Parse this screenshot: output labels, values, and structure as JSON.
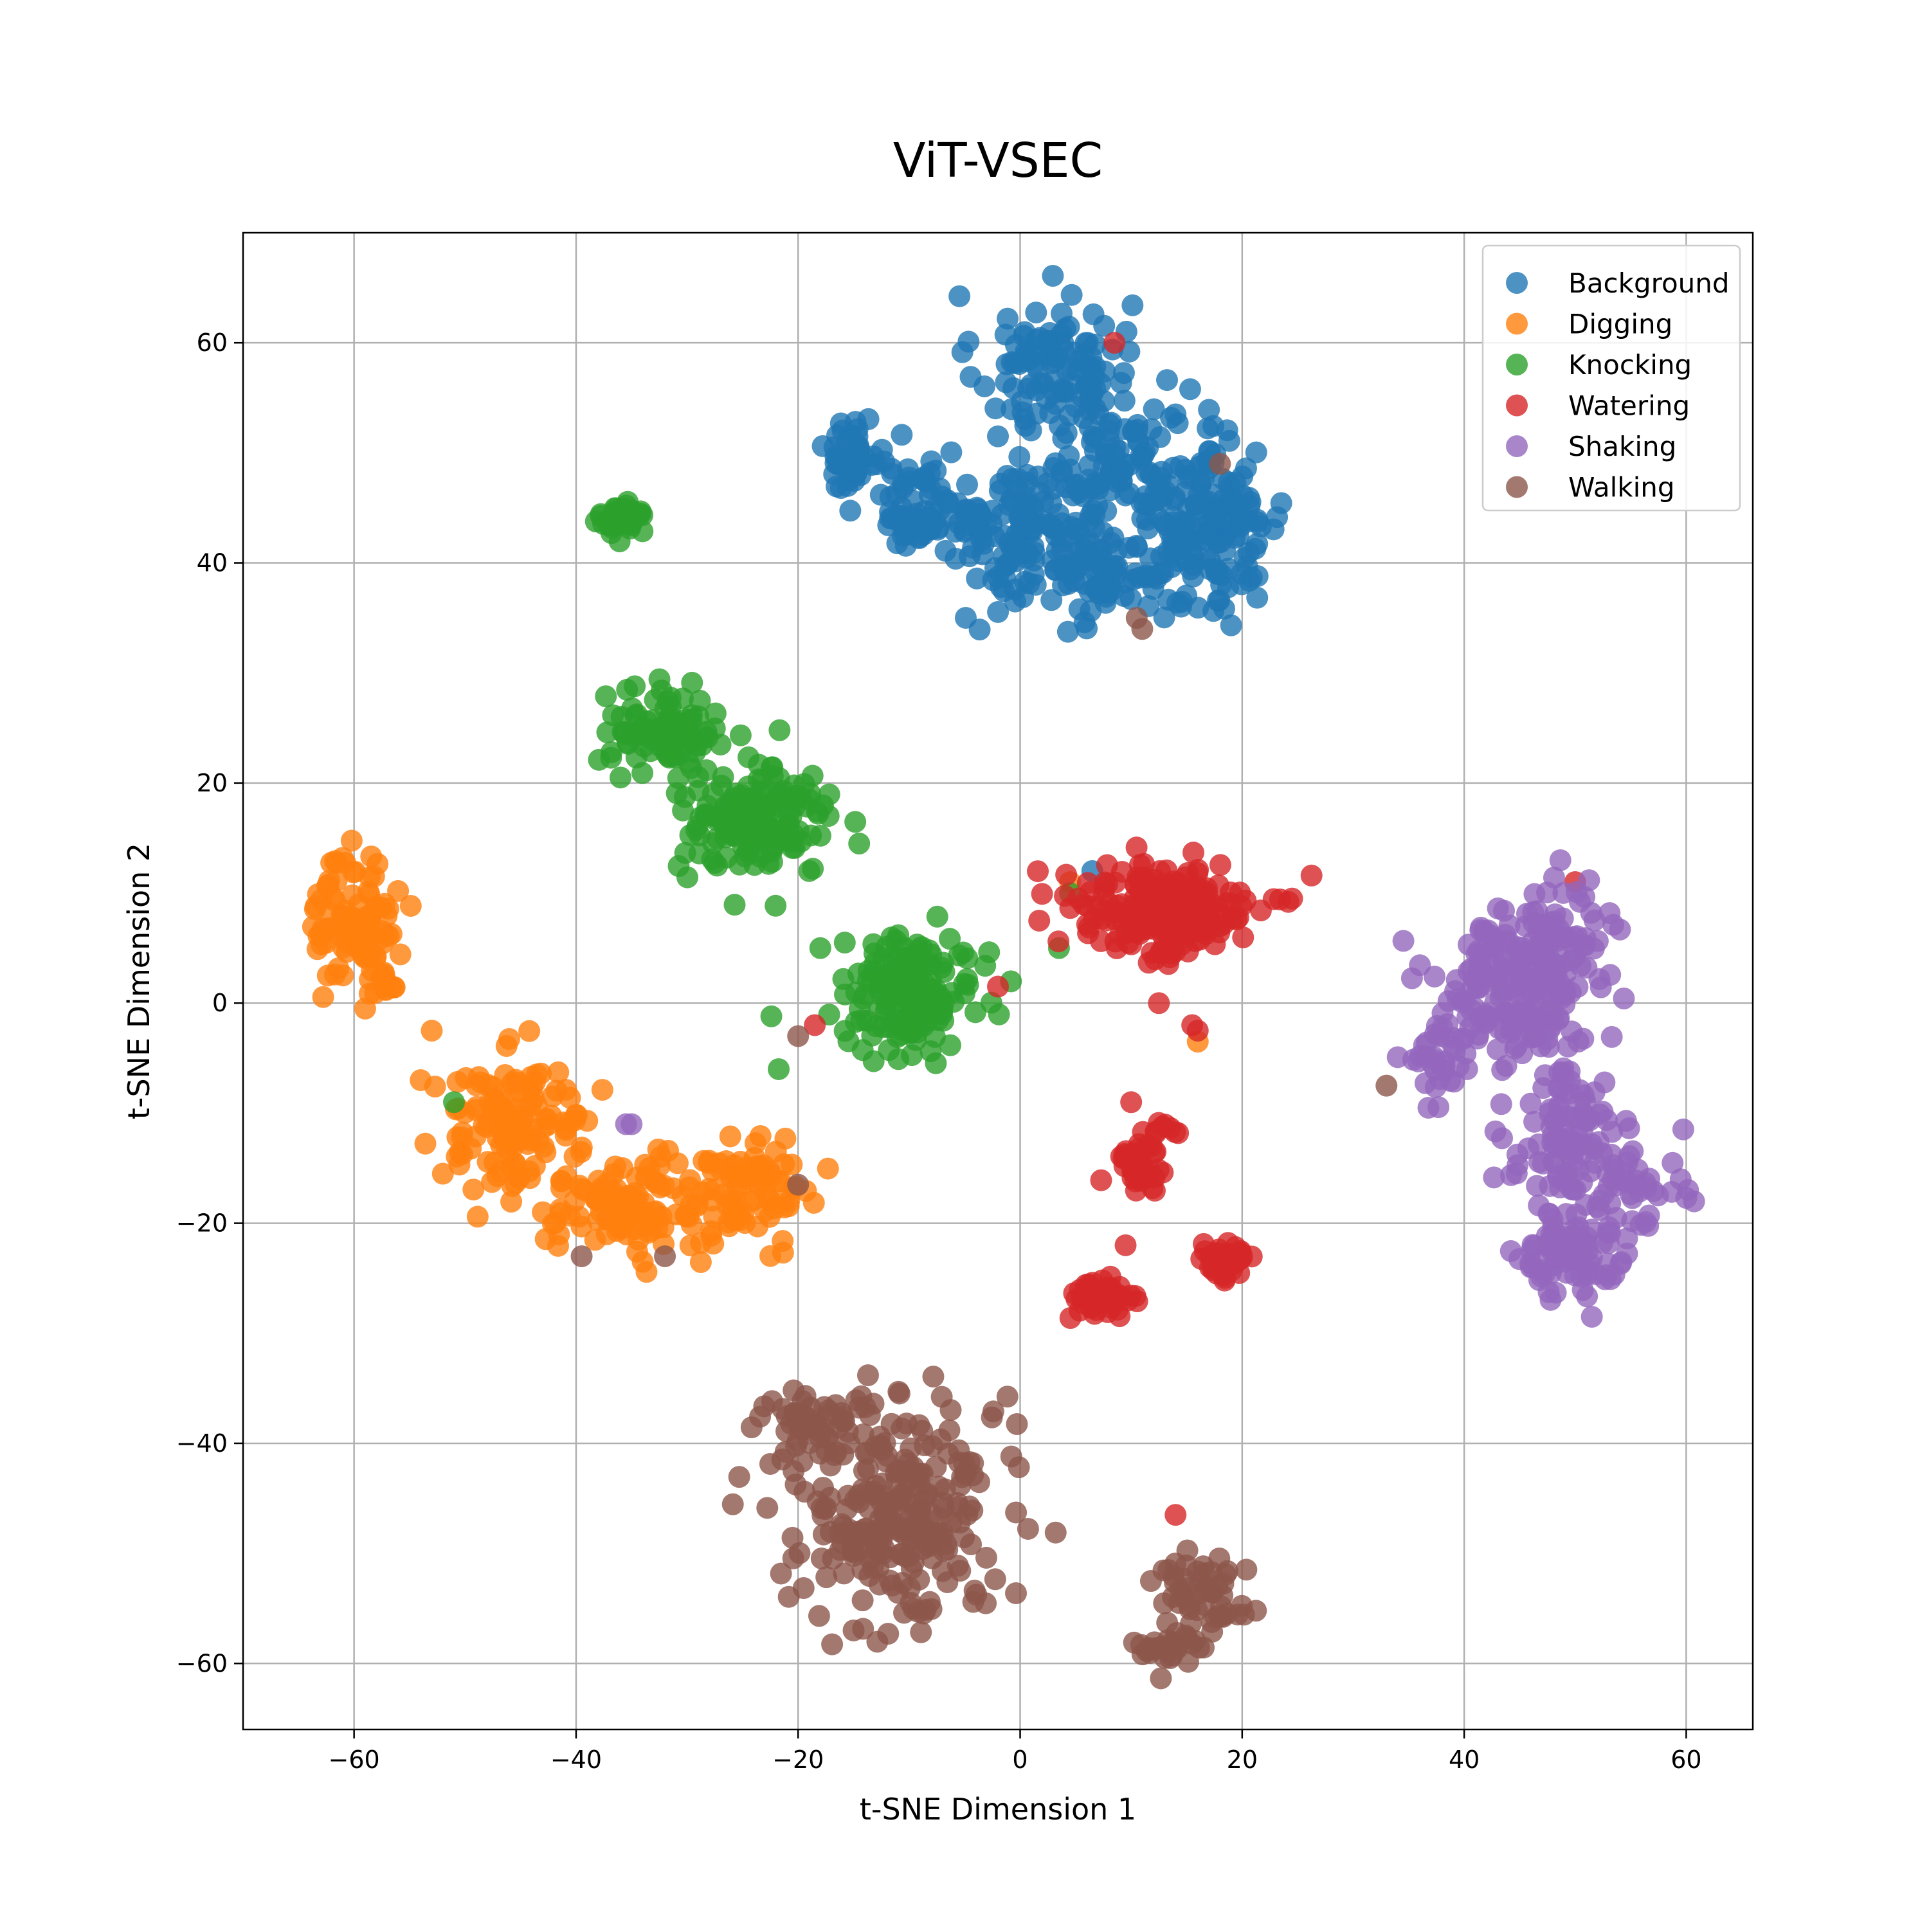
{
  "chart_data": {
    "type": "scatter",
    "title": "ViT-VSEC",
    "xlabel": "t-SNE Dimension 1",
    "ylabel": "t-SNE Dimension 2",
    "xlim": [
      -70,
      66
    ],
    "ylim": [
      -66,
      70
    ],
    "xticks": [
      -60,
      -40,
      -20,
      0,
      20,
      40,
      60
    ],
    "yticks": [
      -60,
      -40,
      -20,
      0,
      20,
      40,
      60
    ],
    "xtick_labels": [
      "−60",
      "−40",
      "−20",
      "0",
      "20",
      "40",
      "60"
    ],
    "ytick_labels": [
      "−60",
      "−40",
      "−20",
      "0",
      "20",
      "40",
      "60"
    ],
    "grid": true,
    "legend_position": "top-right",
    "marker_alpha": 0.8,
    "series": [
      {
        "name": "Background",
        "color": "#1f77b4",
        "clusters": [
          {
            "cx": 3,
            "cy": 58,
            "sx": 3.5,
            "sy": 3.2,
            "n": 110
          },
          {
            "cx": 1,
            "cy": 43,
            "sx": 4.0,
            "sy": 3.5,
            "n": 150
          },
          {
            "cx": 8,
            "cy": 39,
            "sx": 3.0,
            "sy": 2.5,
            "n": 60
          },
          {
            "cx": 17,
            "cy": 44,
            "sx": 3.5,
            "sy": 4.5,
            "n": 170
          },
          {
            "cx": 9,
            "cy": 48,
            "sx": 3.5,
            "sy": 3.0,
            "n": 70
          },
          {
            "cx": -15,
            "cy": 50,
            "sx": 1.5,
            "sy": 1.6,
            "n": 45
          },
          {
            "cx": -9,
            "cy": 46,
            "sx": 2.0,
            "sy": 1.6,
            "n": 40
          },
          {
            "cx": -10,
            "cy": 43,
            "sx": 1.2,
            "sy": 0.9,
            "n": 20
          }
        ],
        "points": [
          [
            6.5,
            12
          ],
          [
            -2,
            51.5
          ],
          [
            14,
            53.5
          ]
        ]
      },
      {
        "name": "Digging",
        "color": "#ff7f0e",
        "clusters": [
          {
            "cx": -60,
            "cy": 8,
            "sx": 1.8,
            "sy": 3.0,
            "n": 90
          },
          {
            "cx": -57.5,
            "cy": 3,
            "sx": 1.0,
            "sy": 1.6,
            "n": 20
          },
          {
            "cx": -45.5,
            "cy": -11,
            "sx": 3.5,
            "sy": 3.0,
            "n": 130
          },
          {
            "cx": -35,
            "cy": -18.5,
            "sx": 3.5,
            "sy": 2.2,
            "n": 110
          },
          {
            "cx": -24,
            "cy": -17,
            "sx": 2.6,
            "sy": 2.2,
            "n": 80
          }
        ],
        "points": [
          [
            -53,
            -2.5
          ],
          [
            -54,
            -7
          ],
          [
            -59,
            -0.5
          ],
          [
            -52,
            -15.5
          ],
          [
            -43,
            -19
          ],
          [
            -22,
            -13.5
          ],
          [
            16,
            -3.5
          ],
          [
            4.5,
            11
          ],
          [
            -34,
            -23.5
          ]
        ]
      },
      {
        "name": "Knocking",
        "color": "#2ca02c",
        "clusters": [
          {
            "cx": -36,
            "cy": 44,
            "sx": 1.0,
            "sy": 0.9,
            "n": 45
          },
          {
            "cx": -32,
            "cy": 25,
            "sx": 2.4,
            "sy": 1.7,
            "n": 90
          },
          {
            "cx": -24,
            "cy": 16.5,
            "sx": 3.5,
            "sy": 2.5,
            "n": 160
          },
          {
            "cx": -10,
            "cy": 1,
            "sx": 3.0,
            "sy": 2.5,
            "n": 160
          }
        ],
        "points": [
          [
            -14.5,
            14.5
          ],
          [
            3.5,
            5
          ],
          [
            -51,
            -9
          ],
          [
            -18,
            5
          ],
          [
            -36,
            20.5
          ],
          [
            4.5,
            10
          ]
        ]
      },
      {
        "name": "Watering",
        "color": "#d62728",
        "clusters": [
          {
            "cx": 13,
            "cy": 8.5,
            "sx": 4.2,
            "sy": 2.2,
            "n": 220
          },
          {
            "cx": 10.5,
            "cy": -14.5,
            "sx": 1.0,
            "sy": 1.6,
            "n": 40
          },
          {
            "cx": 13,
            "cy": -11.5,
            "sx": 1.0,
            "sy": 0.3,
            "n": 8
          },
          {
            "cx": 7.5,
            "cy": -27,
            "sx": 1.5,
            "sy": 1.0,
            "n": 45
          },
          {
            "cx": 18.5,
            "cy": -23.5,
            "sx": 1.5,
            "sy": 1.0,
            "n": 40
          }
        ],
        "points": [
          [
            8.5,
            60
          ],
          [
            -2,
            1.5
          ],
          [
            -18.5,
            -2
          ],
          [
            15.5,
            -2
          ],
          [
            12.5,
            0
          ],
          [
            14,
            -46.5
          ],
          [
            50,
            11
          ],
          [
            24.5,
            9.5
          ],
          [
            10,
            -9
          ],
          [
            9.5,
            -22
          ],
          [
            16,
            -2.5
          ]
        ]
      },
      {
        "name": "Shaking",
        "color": "#9467bd",
        "clusters": [
          {
            "cx": 44,
            "cy": 1,
            "sx": 3.5,
            "sy": 3.5,
            "n": 180
          },
          {
            "cx": 49,
            "cy": 6,
            "sx": 2.5,
            "sy": 2.5,
            "n": 60
          },
          {
            "cx": 49,
            "cy": -12,
            "sx": 2.5,
            "sy": 3.0,
            "n": 90
          },
          {
            "cx": 50,
            "cy": -23,
            "sx": 2.5,
            "sy": 1.8,
            "n": 80
          },
          {
            "cx": 55,
            "cy": -17,
            "sx": 2.5,
            "sy": 2.0,
            "n": 50
          },
          {
            "cx": 37,
            "cy": -6,
            "sx": 1.5,
            "sy": 2.0,
            "n": 25
          }
        ],
        "points": [
          [
            -35,
            -11
          ],
          [
            -35.5,
            -11
          ],
          [
            51.5,
            -28.5
          ],
          [
            59.5,
            -16
          ],
          [
            46,
            -24
          ]
        ]
      },
      {
        "name": "Walking",
        "color": "#8c564b",
        "clusters": [
          {
            "cx": -11,
            "cy": -46,
            "sx": 4.5,
            "sy": 5.0,
            "n": 260
          },
          {
            "cx": -19,
            "cy": -38,
            "sx": 2.5,
            "sy": 2.0,
            "n": 50
          },
          {
            "cx": 16,
            "cy": -54,
            "sx": 2.0,
            "sy": 2.5,
            "n": 55
          },
          {
            "cx": 13,
            "cy": -58.5,
            "sx": 1.6,
            "sy": 0.8,
            "n": 25
          }
        ],
        "points": [
          [
            10.5,
            35
          ],
          [
            11,
            34
          ],
          [
            18,
            49
          ],
          [
            -39.5,
            -23
          ],
          [
            -32,
            -23
          ],
          [
            -20,
            -16.5
          ],
          [
            -20,
            -3
          ],
          [
            33,
            -7.5
          ],
          [
            -15,
            -57
          ]
        ]
      }
    ]
  }
}
